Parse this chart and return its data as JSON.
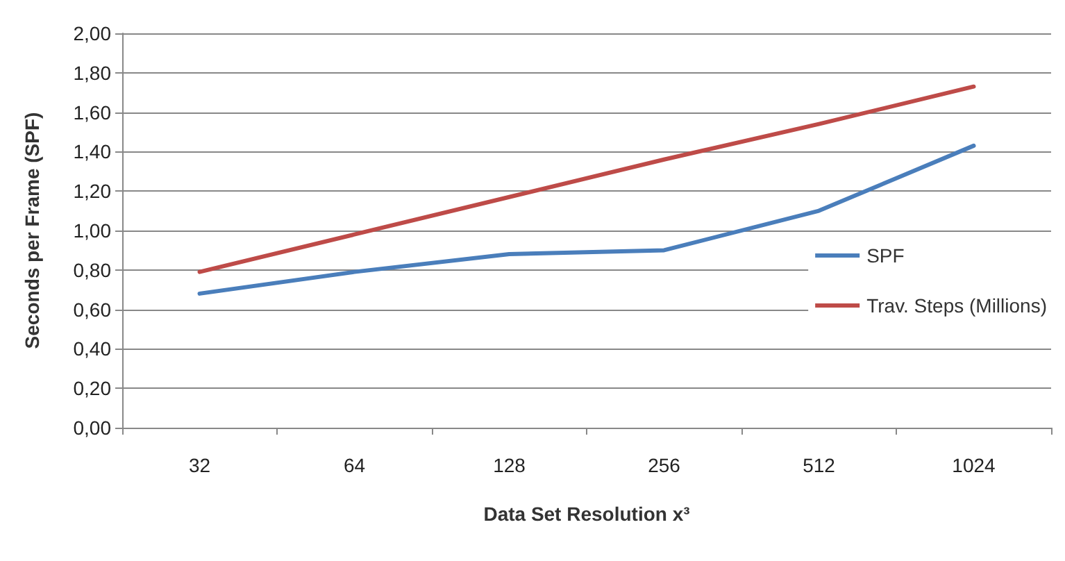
{
  "chart_data": {
    "type": "line",
    "xlabel": "Data Set Resolution x³",
    "ylabel": "Seconds per Frame (SPF)",
    "categories": [
      "32",
      "64",
      "128",
      "256",
      "512",
      "1024"
    ],
    "series": [
      {
        "name": "SPF",
        "color": "#4a7ebb",
        "values": [
          0.68,
          0.79,
          0.88,
          0.9,
          1.1,
          1.43
        ]
      },
      {
        "name": "Trav. Steps (Millions)",
        "color": "#be4b48",
        "values": [
          0.79,
          0.98,
          1.17,
          1.36,
          1.54,
          1.73
        ]
      }
    ],
    "ylim": [
      0,
      2
    ],
    "yticks": [
      {
        "value": 0,
        "label": "0,00"
      },
      {
        "value": 0.2,
        "label": "0,20"
      },
      {
        "value": 0.4,
        "label": "0,40"
      },
      {
        "value": 0.6,
        "label": "0,60"
      },
      {
        "value": 0.8,
        "label": "0,80"
      },
      {
        "value": 1,
        "label": "1,00"
      },
      {
        "value": 1.2,
        "label": "1,20"
      },
      {
        "value": 1.4,
        "label": "1,40"
      },
      {
        "value": 1.6,
        "label": "1,60"
      },
      {
        "value": 1.8,
        "label": "1,80"
      },
      {
        "value": 2,
        "label": "2,00"
      }
    ],
    "grid": "y",
    "legend": "right",
    "marker": "none",
    "line_style": "solid"
  }
}
